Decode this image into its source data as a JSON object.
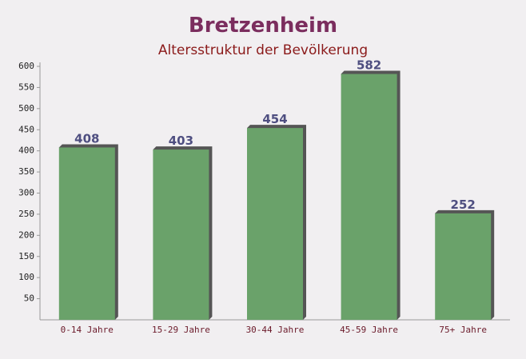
{
  "chart_data": {
    "type": "bar",
    "title": "Bretzenheim",
    "subtitle": "Altersstruktur der Bevölkerung",
    "categories": [
      "0-14 Jahre",
      "15-29 Jahre",
      "30-44 Jahre",
      "45-59 Jahre",
      "75+ Jahre"
    ],
    "values": [
      408,
      403,
      454,
      582,
      252
    ],
    "color": "#6aa26a",
    "ylim": [
      0,
      600
    ],
    "yticks": [
      50,
      100,
      150,
      200,
      250,
      300,
      350,
      400,
      450,
      500,
      550,
      600
    ],
    "grid": false
  }
}
